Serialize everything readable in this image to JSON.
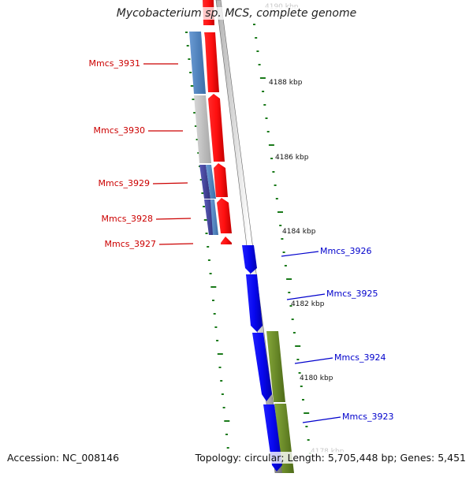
{
  "title": "Mycobacterium sp. MCS, complete genome",
  "footer": {
    "accession": "Accession: NC_008146",
    "summary": "Topology: circular; Length: 5,705,448 bp; Genes: 5,451"
  },
  "scale_labels": [
    "4190 kbp",
    "4188 kbp",
    "4186 kbp",
    "4184 kbp",
    "4182 kbp",
    "4180 kbp",
    "4178 kbp"
  ],
  "genes_left": [
    {
      "label": "Mmcs_3931"
    },
    {
      "label": "Mmcs_3930"
    },
    {
      "label": "Mmcs_3929"
    },
    {
      "label": "Mmcs_3928"
    },
    {
      "label": "Mmcs_3927"
    }
  ],
  "genes_right": [
    {
      "label": "Mmcs_3926"
    },
    {
      "label": "Mmcs_3925"
    },
    {
      "label": "Mmcs_3924"
    },
    {
      "label": "Mmcs_3923"
    }
  ],
  "colors": {
    "reverse_strand": "#ff0000",
    "forward_strand": "#0000ff",
    "backbone": "#8a8a8a",
    "tick": "#1a7a1a",
    "label_left": "#cc0000",
    "label_right": "#0000cc",
    "cog_blue": "#4f86c6",
    "cog_gray": "#c8c8c8",
    "cog_purple": "#4a4aa0",
    "cog_olive": "#6b8e23"
  }
}
